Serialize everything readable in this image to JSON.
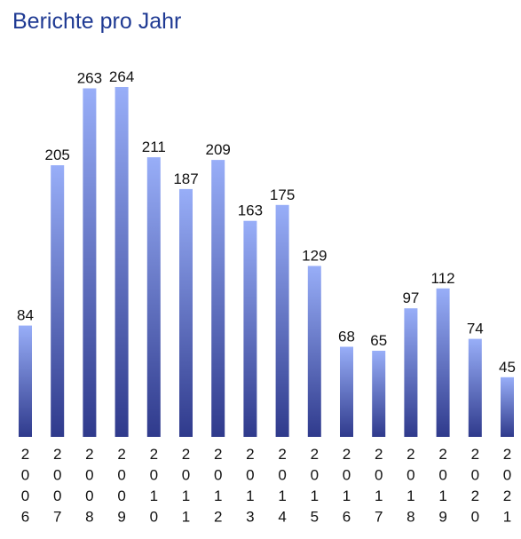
{
  "chart_data": {
    "type": "bar",
    "title": "Berichte pro Jahr",
    "xlabel": "",
    "ylabel": "",
    "categories": [
      "2006",
      "2007",
      "2008",
      "2009",
      "2010",
      "2011",
      "2012",
      "2013",
      "2014",
      "2015",
      "2016",
      "2017",
      "2018",
      "2019",
      "2020",
      "2021"
    ],
    "values": [
      84,
      205,
      263,
      264,
      211,
      187,
      209,
      163,
      175,
      129,
      68,
      65,
      97,
      112,
      74,
      45
    ],
    "ylim": [
      0,
      264
    ],
    "grid": false,
    "legend": "none",
    "bar_gradient": [
      "#98aef8",
      "#2f3a8c"
    ]
  }
}
